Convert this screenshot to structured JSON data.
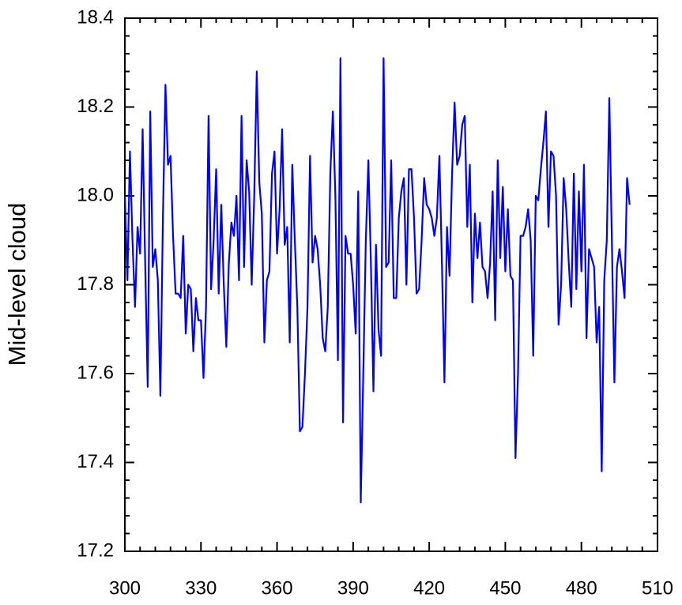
{
  "chart_data": {
    "type": "line",
    "y_label": "Mid-level cloud",
    "color": "#0000ff",
    "x": [
      300,
      301,
      302,
      303,
      304,
      305,
      306,
      307,
      308,
      309,
      310,
      311,
      312,
      313,
      314,
      315,
      316,
      317,
      318,
      319,
      320,
      321,
      322,
      323,
      324,
      325,
      326,
      327,
      328,
      329,
      330,
      331,
      332,
      333,
      334,
      335,
      336,
      337,
      338,
      339,
      340,
      341,
      342,
      343,
      344,
      345,
      346,
      347,
      348,
      349,
      350,
      351,
      352,
      353,
      354,
      355,
      356,
      357,
      358,
      359,
      360,
      361,
      362,
      363,
      364,
      365,
      366,
      367,
      368,
      369,
      370,
      371,
      372,
      373,
      374,
      375,
      376,
      377,
      378,
      379,
      380,
      381,
      382,
      383,
      384,
      385,
      386,
      387,
      388,
      389,
      390,
      391,
      392,
      393,
      394,
      395,
      396,
      397,
      398,
      399,
      400,
      401,
      402,
      403,
      404,
      405,
      406,
      407,
      408,
      409,
      410,
      411,
      412,
      413,
      414,
      415,
      416,
      417,
      418,
      419,
      420,
      421,
      422,
      423,
      424,
      425,
      426,
      427,
      428,
      429,
      430,
      431,
      432,
      433,
      434,
      435,
      436,
      437,
      438,
      439,
      440,
      441,
      442,
      443,
      444,
      445,
      446,
      447,
      448,
      449,
      450,
      451,
      452,
      453,
      454,
      455,
      456,
      457,
      458,
      459,
      460,
      461,
      462,
      463,
      464,
      465,
      466,
      467,
      468,
      469,
      470,
      471,
      472,
      473,
      474,
      475,
      476,
      477,
      478,
      479,
      480,
      481,
      482,
      483,
      484,
      485,
      486,
      487,
      488,
      489,
      490,
      491,
      492,
      493,
      494,
      495,
      496,
      497,
      498,
      499
    ],
    "values": [
      18.0,
      17.81,
      18.1,
      17.9,
      17.75,
      17.93,
      17.87,
      18.15,
      17.85,
      17.57,
      18.19,
      17.84,
      17.88,
      17.81,
      17.55,
      17.95,
      18.25,
      18.07,
      18.09,
      17.91,
      17.78,
      17.78,
      17.77,
      17.91,
      17.69,
      17.8,
      17.79,
      17.65,
      17.77,
      17.72,
      17.72,
      17.59,
      17.75,
      18.18,
      17.79,
      17.9,
      18.06,
      17.78,
      17.98,
      17.8,
      17.66,
      17.85,
      17.94,
      17.91,
      18.0,
      17.81,
      18.18,
      17.84,
      18.08,
      18.01,
      17.8,
      18.0,
      18.28,
      18.03,
      17.96,
      17.67,
      17.81,
      17.83,
      18.05,
      18.1,
      17.87,
      17.97,
      18.15,
      17.89,
      17.93,
      17.67,
      18.07,
      17.9,
      17.75,
      17.47,
      17.48,
      17.6,
      17.75,
      18.09,
      17.85,
      17.91,
      17.88,
      17.8,
      17.68,
      17.65,
      17.75,
      18.05,
      18.19,
      18.0,
      17.63,
      18.31,
      17.49,
      17.91,
      17.87,
      17.87,
      17.8,
      17.69,
      18.01,
      17.31,
      17.6,
      17.9,
      18.08,
      17.85,
      17.56,
      17.89,
      17.7,
      17.64,
      18.31,
      17.84,
      17.85,
      18.08,
      17.77,
      17.77,
      17.95,
      18.01,
      18.04,
      17.8,
      18.06,
      18.06,
      17.95,
      17.78,
      17.79,
      17.9,
      18.04,
      17.98,
      17.97,
      17.95,
      17.91,
      17.95,
      18.09,
      17.85,
      17.58,
      17.93,
      17.82,
      18.05,
      18.21,
      18.07,
      18.09,
      18.16,
      18.18,
      17.93,
      18.07,
      17.76,
      17.96,
      17.86,
      17.94,
      17.84,
      17.83,
      17.77,
      17.85,
      18.01,
      17.72,
      18.08,
      17.86,
      18.02,
      17.83,
      17.97,
      17.82,
      17.81,
      17.41,
      17.6,
      17.91,
      17.91,
      17.93,
      17.97,
      17.9,
      17.64,
      18.0,
      17.99,
      18.06,
      18.12,
      18.19,
      17.93,
      18.1,
      18.09,
      18.0,
      17.71,
      17.8,
      18.04,
      17.97,
      17.85,
      17.75,
      18.05,
      17.79,
      18.01,
      17.83,
      18.07,
      17.68,
      17.88,
      17.86,
      17.84,
      17.67,
      17.75,
      17.38,
      17.81,
      17.9,
      18.22,
      17.9,
      17.58,
      17.84,
      17.88,
      17.83,
      17.77,
      18.04,
      17.98
    ],
    "xlim": [
      300,
      510
    ],
    "xticks": [
      300,
      330,
      360,
      390,
      420,
      450,
      480,
      510
    ],
    "ylim": [
      17.2,
      18.4
    ],
    "yticks": [
      17.2,
      17.4,
      17.6,
      17.8,
      {
        "value": 18,
        "label": "18.0"
      },
      18.2,
      18.4
    ]
  }
}
